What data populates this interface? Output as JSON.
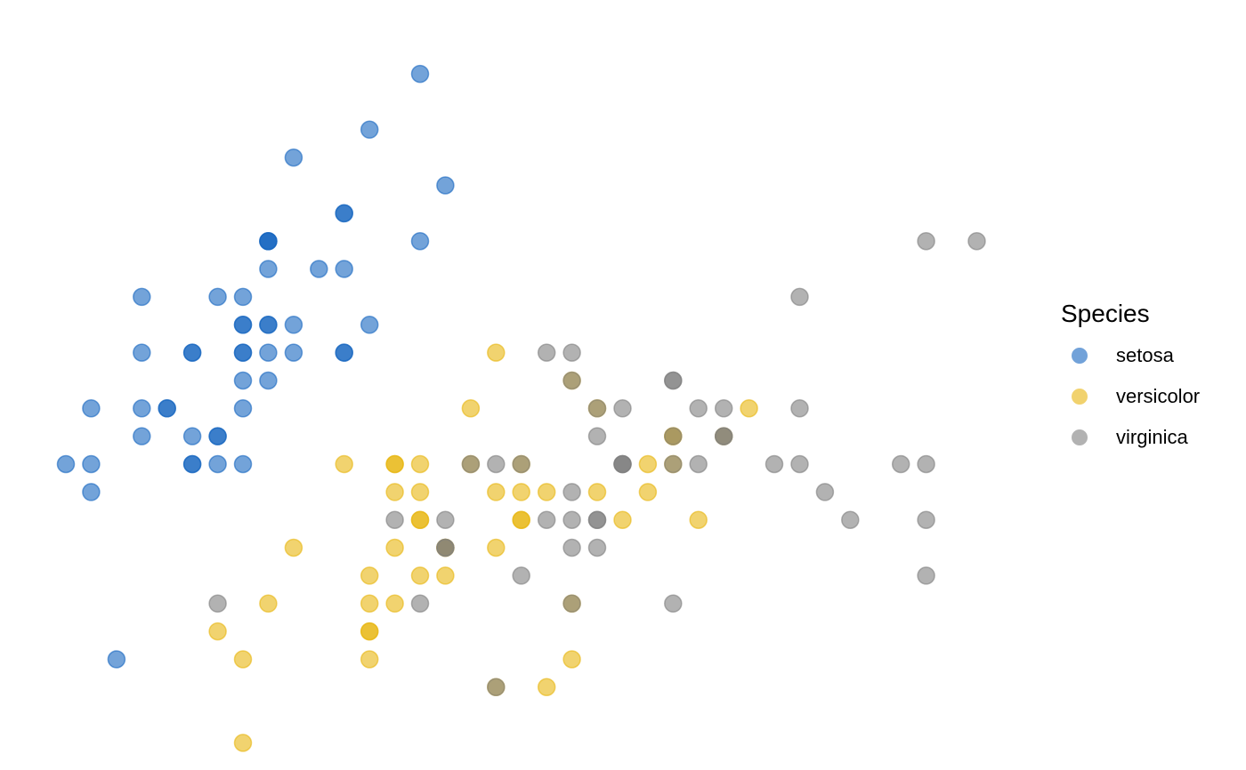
{
  "chart_data": {
    "type": "scatter",
    "title": "",
    "xlabel": "",
    "ylabel": "",
    "axes_visible": false,
    "grid": false,
    "xlim": [
      4.2,
      8.0
    ],
    "ylim": [
      1.95,
      4.45
    ],
    "point_alpha": 0.6,
    "legend": {
      "title": "Species",
      "placement": "right"
    },
    "series": [
      {
        "name": "setosa",
        "color": "#1565C0",
        "points": [
          [
            5.1,
            3.5
          ],
          [
            4.9,
            3.0
          ],
          [
            4.7,
            3.2
          ],
          [
            4.6,
            3.1
          ],
          [
            5.0,
            3.6
          ],
          [
            5.4,
            3.9
          ],
          [
            4.6,
            3.4
          ],
          [
            5.0,
            3.4
          ],
          [
            4.4,
            2.9
          ],
          [
            4.9,
            3.1
          ],
          [
            5.4,
            3.7
          ],
          [
            4.8,
            3.4
          ],
          [
            4.8,
            3.0
          ],
          [
            4.3,
            3.0
          ],
          [
            5.8,
            4.0
          ],
          [
            5.7,
            4.4
          ],
          [
            5.4,
            3.9
          ],
          [
            5.1,
            3.5
          ],
          [
            5.7,
            3.8
          ],
          [
            5.1,
            3.8
          ],
          [
            5.4,
            3.4
          ],
          [
            5.1,
            3.7
          ],
          [
            4.6,
            3.6
          ],
          [
            5.1,
            3.3
          ],
          [
            4.8,
            3.4
          ],
          [
            5.0,
            3.0
          ],
          [
            5.0,
            3.4
          ],
          [
            5.2,
            3.5
          ],
          [
            5.2,
            3.4
          ],
          [
            4.7,
            3.2
          ],
          [
            4.8,
            3.1
          ],
          [
            5.4,
            3.4
          ],
          [
            5.2,
            4.1
          ],
          [
            5.5,
            4.2
          ],
          [
            4.9,
            3.1
          ],
          [
            5.0,
            3.2
          ],
          [
            5.5,
            3.5
          ],
          [
            4.9,
            3.6
          ],
          [
            4.4,
            3.0
          ],
          [
            5.1,
            3.4
          ],
          [
            5.0,
            3.5
          ],
          [
            4.5,
            2.3
          ],
          [
            4.4,
            3.2
          ],
          [
            5.0,
            3.5
          ],
          [
            5.1,
            3.8
          ],
          [
            4.8,
            3.0
          ],
          [
            5.1,
            3.8
          ],
          [
            4.6,
            3.2
          ],
          [
            5.3,
            3.7
          ],
          [
            5.0,
            3.3
          ]
        ]
      },
      {
        "name": "versicolor",
        "color": "#E8B50F",
        "points": [
          [
            7.0,
            3.2
          ],
          [
            6.4,
            3.2
          ],
          [
            6.9,
            3.1
          ],
          [
            5.5,
            2.3
          ],
          [
            6.5,
            2.8
          ],
          [
            5.7,
            2.8
          ],
          [
            6.3,
            3.3
          ],
          [
            4.9,
            2.4
          ],
          [
            6.6,
            2.9
          ],
          [
            5.2,
            2.7
          ],
          [
            5.0,
            2.0
          ],
          [
            5.9,
            3.0
          ],
          [
            6.0,
            2.2
          ],
          [
            6.1,
            2.9
          ],
          [
            5.6,
            2.9
          ],
          [
            6.7,
            3.1
          ],
          [
            5.6,
            3.0
          ],
          [
            5.8,
            2.7
          ],
          [
            6.2,
            2.2
          ],
          [
            5.6,
            2.5
          ],
          [
            5.9,
            3.2
          ],
          [
            6.1,
            2.8
          ],
          [
            6.3,
            2.5
          ],
          [
            6.1,
            2.8
          ],
          [
            6.4,
            2.9
          ],
          [
            6.6,
            3.0
          ],
          [
            6.8,
            2.8
          ],
          [
            6.7,
            3.0
          ],
          [
            6.0,
            2.9
          ],
          [
            5.7,
            2.6
          ],
          [
            5.5,
            2.4
          ],
          [
            5.5,
            2.4
          ],
          [
            5.8,
            2.7
          ],
          [
            6.0,
            2.7
          ],
          [
            5.4,
            3.0
          ],
          [
            6.0,
            3.4
          ],
          [
            6.7,
            3.1
          ],
          [
            6.3,
            2.3
          ],
          [
            5.6,
            3.0
          ],
          [
            5.5,
            2.5
          ],
          [
            5.5,
            2.6
          ],
          [
            6.1,
            3.0
          ],
          [
            5.8,
            2.6
          ],
          [
            5.0,
            2.3
          ],
          [
            5.6,
            2.7
          ],
          [
            5.7,
            3.0
          ],
          [
            5.7,
            2.9
          ],
          [
            6.2,
            2.9
          ],
          [
            5.1,
            2.5
          ],
          [
            5.7,
            2.8
          ]
        ]
      },
      {
        "name": "virginica",
        "color": "#7F7F7F",
        "points": [
          [
            6.3,
            3.3
          ],
          [
            5.8,
            2.7
          ],
          [
            7.1,
            3.0
          ],
          [
            6.3,
            2.9
          ],
          [
            6.5,
            3.0
          ],
          [
            7.6,
            3.0
          ],
          [
            4.9,
            2.5
          ],
          [
            7.3,
            2.9
          ],
          [
            6.7,
            2.5
          ],
          [
            7.2,
            3.6
          ],
          [
            6.5,
            3.2
          ],
          [
            6.4,
            2.7
          ],
          [
            6.8,
            3.0
          ],
          [
            5.7,
            2.5
          ],
          [
            5.8,
            2.8
          ],
          [
            6.4,
            3.2
          ],
          [
            6.5,
            3.0
          ],
          [
            7.7,
            3.8
          ],
          [
            7.7,
            2.6
          ],
          [
            6.0,
            2.2
          ],
          [
            6.9,
            3.2
          ],
          [
            5.6,
            2.8
          ],
          [
            7.7,
            2.8
          ],
          [
            6.3,
            2.7
          ],
          [
            6.7,
            3.3
          ],
          [
            7.2,
            3.2
          ],
          [
            6.2,
            2.8
          ],
          [
            6.1,
            3.0
          ],
          [
            6.4,
            2.8
          ],
          [
            7.2,
            3.0
          ],
          [
            7.4,
            2.8
          ],
          [
            7.9,
            3.8
          ],
          [
            6.4,
            2.8
          ],
          [
            6.3,
            2.8
          ],
          [
            6.1,
            2.6
          ],
          [
            7.7,
            3.0
          ],
          [
            6.3,
            3.4
          ],
          [
            6.4,
            3.1
          ],
          [
            6.0,
            3.0
          ],
          [
            6.9,
            3.1
          ],
          [
            6.7,
            3.1
          ],
          [
            6.9,
            3.1
          ],
          [
            5.8,
            2.7
          ],
          [
            6.8,
            3.2
          ],
          [
            6.7,
            3.3
          ],
          [
            6.7,
            3.0
          ],
          [
            6.3,
            2.5
          ],
          [
            6.5,
            3.0
          ],
          [
            6.2,
            3.4
          ],
          [
            5.9,
            3.0
          ]
        ]
      }
    ]
  }
}
